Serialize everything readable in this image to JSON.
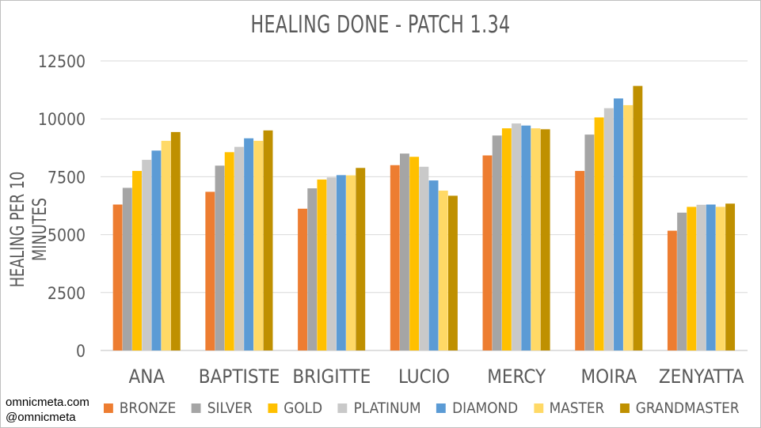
{
  "chart_data": {
    "type": "bar",
    "title": "HEALING DONE - PATCH 1.34",
    "ylabel": "HEALING PER 10 MINUTES",
    "xlabel": "",
    "ylim": [
      0,
      12500
    ],
    "yticks": [
      0,
      2500,
      5000,
      7500,
      10000,
      12500
    ],
    "categories": [
      "ANA",
      "BAPTISTE",
      "BRIGITTE",
      "LUCIO",
      "MERCY",
      "MOIRA",
      "ZENYATTA"
    ],
    "series": [
      {
        "name": "BRONZE",
        "color": "#ed7d31",
        "values": [
          6300,
          6850,
          6120,
          8000,
          8420,
          7750,
          5170
        ]
      },
      {
        "name": "SILVER",
        "color": "#a5a5a5",
        "values": [
          7020,
          7980,
          7000,
          8500,
          9280,
          9320,
          5950
        ]
      },
      {
        "name": "GOLD",
        "color": "#ffc000",
        "values": [
          7750,
          8560,
          7380,
          8360,
          9590,
          10060,
          6200
        ]
      },
      {
        "name": "PLATINUM",
        "color": "#c9c9c9",
        "values": [
          8230,
          8790,
          7470,
          7930,
          9800,
          10460,
          6290
        ]
      },
      {
        "name": "DIAMOND",
        "color": "#5b9bd5",
        "values": [
          8630,
          9160,
          7570,
          7340,
          9710,
          10880,
          6300
        ]
      },
      {
        "name": "MASTER",
        "color": "#ffd966",
        "values": [
          9050,
          9050,
          7560,
          6900,
          9590,
          10590,
          6200
        ]
      },
      {
        "name": "GRANDMASTER",
        "color": "#bf9000",
        "values": [
          9430,
          9500,
          7880,
          6680,
          9550,
          11420,
          6340
        ]
      }
    ],
    "grid": true,
    "legend_position": "bottom"
  },
  "credits": {
    "site": "omnicmeta.com",
    "handle": "@omnicmeta"
  }
}
